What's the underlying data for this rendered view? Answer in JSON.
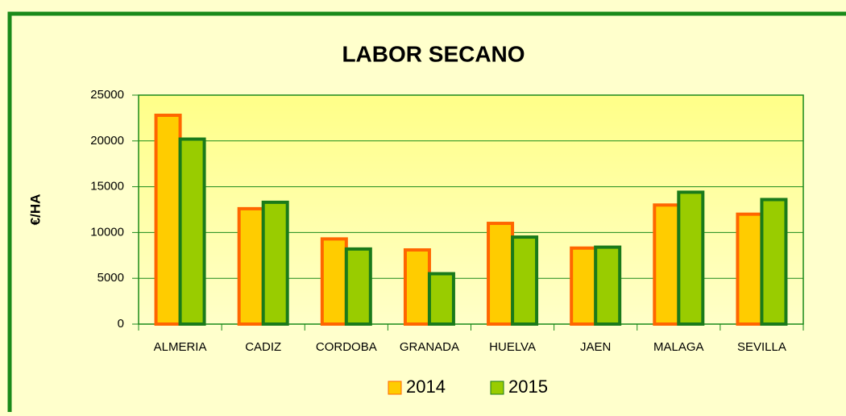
{
  "chart_data": {
    "type": "bar",
    "title": "LABOR SECANO",
    "y_label": "€/HA",
    "categories": [
      "ALMERIA",
      "CADIZ",
      "CORDOBA",
      "GRANADA",
      "HUELVA",
      "JAEN",
      "MALAGA",
      "SEVILLA"
    ],
    "series": [
      {
        "name": "2014",
        "color": "#ffcc00",
        "edge_color": "#ff6600",
        "values": [
          22800,
          12600,
          9300,
          8100,
          11000,
          8300,
          13000,
          12000
        ]
      },
      {
        "name": "2015",
        "color": "#99cc00",
        "edge_color": "#1a7a1a",
        "values": [
          20200,
          13300,
          8200,
          5500,
          9500,
          8400,
          14400,
          13600
        ]
      }
    ],
    "ylim": [
      0,
      25000
    ],
    "yticks": [
      0,
      5000,
      10000,
      15000,
      20000,
      25000
    ],
    "grid": true,
    "legend": "bottom"
  }
}
